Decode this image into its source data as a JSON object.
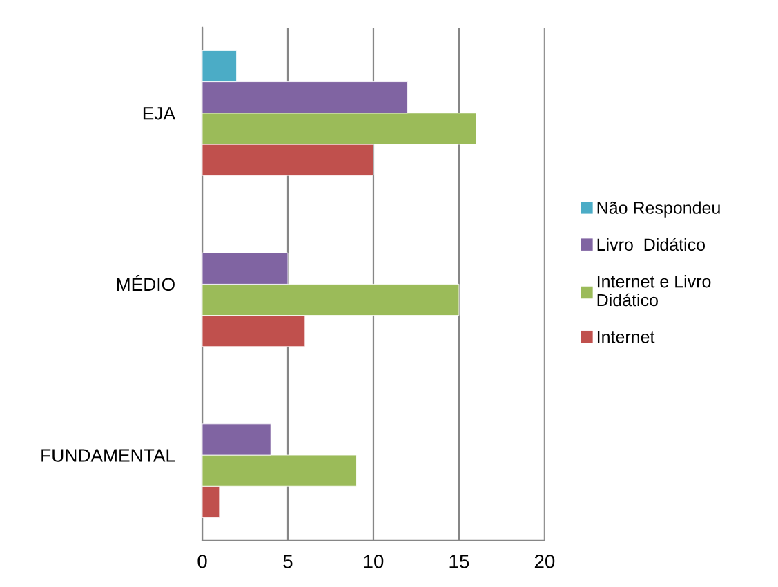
{
  "chart_data": {
    "type": "bar",
    "orientation": "horizontal",
    "categories": [
      "EJA",
      "MÉDIO",
      "FUNDAMENTAL"
    ],
    "series": [
      {
        "name": "Internet",
        "color": "#c0504d",
        "values": [
          10,
          6,
          1
        ]
      },
      {
        "name": "Internet e Livro Didático",
        "color": "#9bbb59",
        "values": [
          16,
          15,
          9
        ]
      },
      {
        "name": "Livro  Didático",
        "color": "#8064a2",
        "values": [
          12,
          5,
          4
        ]
      },
      {
        "name": "Não Respondeu",
        "color": "#4bacc6",
        "values": [
          2,
          null,
          null
        ]
      }
    ],
    "xlim": [
      0,
      20
    ],
    "xticks": [
      0,
      5,
      10,
      15,
      20
    ],
    "grid": "x",
    "legend": "right"
  }
}
